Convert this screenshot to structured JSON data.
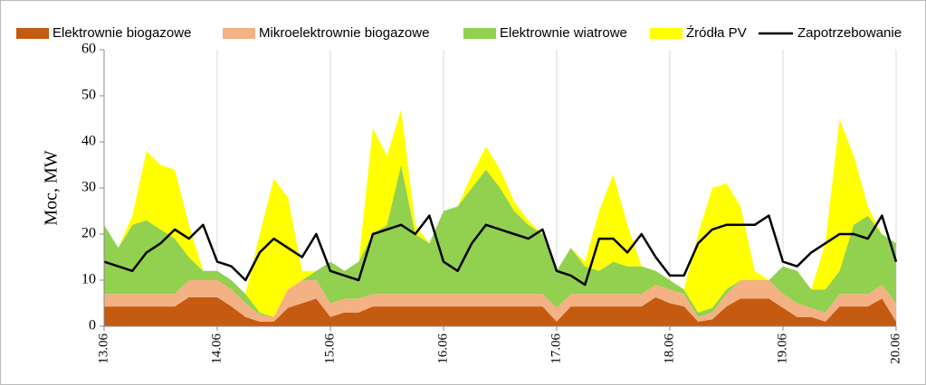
{
  "chart_data": {
    "type": "stacked-area-line",
    "y_label": "Moc, MW",
    "x": [
      0,
      3,
      6,
      9,
      12,
      15,
      18,
      21,
      24,
      27,
      30,
      33,
      36,
      39,
      42,
      45,
      48,
      51,
      54,
      57,
      60,
      63,
      66,
      69,
      72,
      75,
      78,
      81,
      84,
      87,
      90,
      93,
      96,
      99,
      102,
      105,
      108,
      111,
      114,
      117,
      120,
      123,
      126,
      129,
      132,
      135,
      138,
      141,
      144,
      147,
      150,
      153,
      156,
      159,
      162,
      165,
      168
    ],
    "xlim": [
      0,
      168
    ],
    "xticks": [
      {
        "value": 0,
        "label": "13.06"
      },
      {
        "value": 24,
        "label": "14.06"
      },
      {
        "value": 48,
        "label": "15.06"
      },
      {
        "value": 72,
        "label": "16.06"
      },
      {
        "value": 96,
        "label": "17.06"
      },
      {
        "value": 120,
        "label": "18.06"
      },
      {
        "value": 144,
        "label": "19.06"
      },
      {
        "value": 168,
        "label": "20.06"
      }
    ],
    "ylim": [
      0,
      60
    ],
    "yticks": [
      0,
      10,
      20,
      30,
      40,
      50,
      60
    ],
    "grid": true,
    "legend": "top",
    "series": [
      {
        "name": "Elektrownie biogazowe",
        "color": "#c55a11",
        "kind": "area",
        "values": [
          4.3,
          4.3,
          4.3,
          4.3,
          4.3,
          4.3,
          6.3,
          6.3,
          6.3,
          4.3,
          2,
          1,
          1,
          4,
          5,
          6,
          2,
          3,
          3,
          4.3,
          4.3,
          4.3,
          4.3,
          4.3,
          4.3,
          4.3,
          4.3,
          4.3,
          4.3,
          4.3,
          4.3,
          4.3,
          1,
          4.3,
          4.3,
          4.3,
          4.3,
          4.3,
          4.3,
          6.3,
          5,
          4.3,
          1,
          1.5,
          4.3,
          6,
          6,
          6,
          4,
          2,
          2,
          1,
          4.3,
          4.3,
          4.3,
          6,
          1
        ]
      },
      {
        "name": "Mikroelektrownie biogazowe",
        "color": "#f4b183",
        "kind": "area",
        "values": [
          2.7,
          2.7,
          2.7,
          2.7,
          2.7,
          2.7,
          3.7,
          3.7,
          3.7,
          3.7,
          3,
          1.5,
          1,
          4,
          5,
          4,
          3,
          3,
          3,
          2.7,
          2.7,
          2.7,
          2.7,
          2.7,
          2.7,
          2.7,
          2.7,
          2.7,
          2.7,
          2.7,
          2.7,
          2.7,
          3,
          2.7,
          2.7,
          2.7,
          2.7,
          2.7,
          2.7,
          2.7,
          3,
          2.7,
          1,
          1.5,
          2.7,
          4,
          4,
          4,
          3,
          3,
          2,
          2,
          2.7,
          2.7,
          2.7,
          3,
          4
        ]
      },
      {
        "name": "Elektrownie wiatrowe",
        "color": "#92d050",
        "kind": "area",
        "values": [
          15,
          10,
          15,
          16,
          14,
          12,
          5,
          2,
          2,
          2,
          2,
          0.5,
          0,
          0,
          0,
          2,
          9,
          6,
          8,
          13,
          15,
          28,
          13,
          11,
          18,
          19,
          23,
          27,
          23,
          18,
          15,
          13,
          8,
          10,
          6,
          5,
          7,
          6,
          6,
          3,
          2,
          1,
          1,
          1,
          1,
          0,
          0,
          0,
          6,
          7,
          4,
          5,
          5,
          15,
          17,
          11,
          13
        ]
      },
      {
        "name": "Źródła PV",
        "color": "#ffff00",
        "kind": "area",
        "values": [
          0,
          0,
          2,
          15,
          14,
          15,
          7,
          0,
          0,
          0,
          0,
          17,
          30,
          20,
          2,
          0,
          0,
          0,
          0,
          23,
          15,
          12,
          2,
          0,
          0,
          0,
          3,
          5,
          4,
          2,
          1,
          0,
          0,
          0,
          1,
          13,
          19,
          9,
          0,
          0,
          0,
          0,
          17,
          26,
          23,
          16,
          2,
          0,
          0,
          0,
          0,
          10,
          33,
          15,
          2,
          0,
          0
        ]
      },
      {
        "name": "Zapotrzebowanie",
        "color": "#000000",
        "kind": "line",
        "values": [
          14,
          13,
          12,
          16,
          18,
          21,
          19,
          22,
          14,
          13,
          10,
          16,
          19,
          17,
          15,
          20,
          12,
          11,
          10,
          20,
          21,
          22,
          20,
          24,
          14,
          12,
          18,
          22,
          21,
          20,
          19,
          21,
          12,
          11,
          9,
          19,
          19,
          16,
          20,
          15,
          11,
          11,
          18,
          21,
          22,
          22,
          22,
          24,
          14,
          13,
          16,
          18,
          20,
          20,
          19,
          24,
          14
        ]
      }
    ]
  }
}
